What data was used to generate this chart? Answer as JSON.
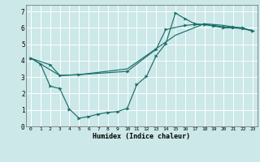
{
  "xlabel": "Humidex (Indice chaleur)",
  "background_color": "#cce8e8",
  "grid_color": "#ffffff",
  "line_color": "#1a6e6a",
  "xlim": [
    -0.5,
    23.5
  ],
  "ylim": [
    0,
    7.4
  ],
  "yticks": [
    0,
    1,
    2,
    3,
    4,
    5,
    6,
    7
  ],
  "xticks": [
    0,
    1,
    2,
    3,
    4,
    5,
    6,
    7,
    8,
    9,
    10,
    11,
    12,
    13,
    14,
    15,
    16,
    17,
    18,
    19,
    20,
    21,
    22,
    23
  ],
  "line1_x": [
    0,
    1,
    2,
    3,
    4,
    5,
    6,
    7,
    8,
    9,
    10,
    11,
    12,
    13,
    14,
    15,
    16,
    17,
    18,
    19,
    20,
    21,
    22,
    23
  ],
  "line1_y": [
    4.15,
    3.8,
    2.45,
    2.3,
    1.05,
    0.5,
    0.6,
    0.75,
    0.85,
    0.9,
    1.1,
    2.55,
    3.05,
    4.3,
    5.05,
    6.9,
    6.55,
    6.25,
    6.2,
    6.1,
    6.0,
    6.0,
    5.95,
    5.8
  ],
  "line2_x": [
    0,
    2,
    3,
    5,
    10,
    13,
    14,
    16,
    17,
    18,
    19,
    20,
    21,
    22,
    23
  ],
  "line2_y": [
    4.15,
    3.75,
    3.1,
    3.15,
    3.35,
    4.7,
    5.9,
    6.15,
    6.2,
    6.2,
    6.15,
    6.05,
    6.05,
    6.0,
    5.8
  ],
  "line3_x": [
    0,
    3,
    5,
    10,
    15,
    18,
    20,
    23
  ],
  "line3_y": [
    4.15,
    3.1,
    3.15,
    3.5,
    5.55,
    6.25,
    6.15,
    5.85
  ]
}
